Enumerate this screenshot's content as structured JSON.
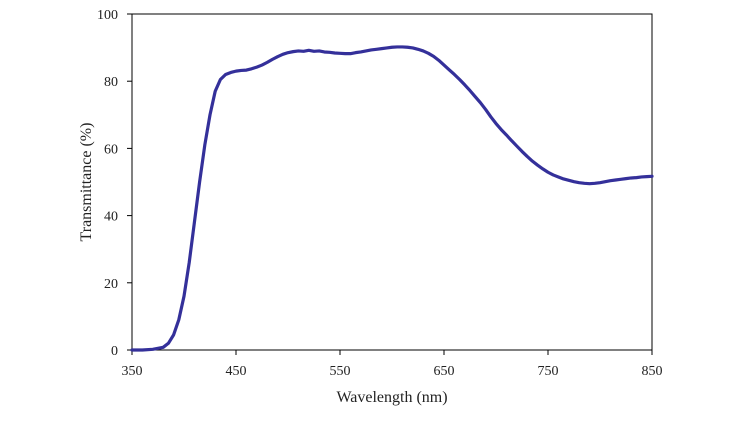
{
  "chart_data": {
    "type": "line",
    "title": "",
    "xlabel": "Wavelength (nm)",
    "ylabel": "Transmittance (%)",
    "xlim": [
      350,
      850
    ],
    "ylim": [
      0,
      100
    ],
    "x_ticks": [
      "350",
      "450",
      "550",
      "650",
      "750",
      "850"
    ],
    "y_ticks": [
      "0",
      "20",
      "40",
      "60",
      "80",
      "100"
    ],
    "grid": false,
    "legend": "none",
    "series": [
      {
        "color": "#34309a",
        "points": [
          [
            350,
            0
          ],
          [
            360,
            0
          ],
          [
            370,
            0.2
          ],
          [
            380,
            0.8
          ],
          [
            385,
            2
          ],
          [
            390,
            4.5
          ],
          [
            395,
            9
          ],
          [
            400,
            16
          ],
          [
            405,
            26
          ],
          [
            410,
            38
          ],
          [
            415,
            50
          ],
          [
            420,
            61
          ],
          [
            425,
            70
          ],
          [
            430,
            77
          ],
          [
            435,
            80.5
          ],
          [
            440,
            82
          ],
          [
            445,
            82.6
          ],
          [
            450,
            83
          ],
          [
            455,
            83.2
          ],
          [
            460,
            83.3
          ],
          [
            465,
            83.7
          ],
          [
            470,
            84.2
          ],
          [
            475,
            84.8
          ],
          [
            480,
            85.6
          ],
          [
            485,
            86.5
          ],
          [
            490,
            87.3
          ],
          [
            495,
            88
          ],
          [
            500,
            88.5
          ],
          [
            505,
            88.8
          ],
          [
            510,
            89
          ],
          [
            515,
            88.9
          ],
          [
            520,
            89.2
          ],
          [
            525,
            88.9
          ],
          [
            530,
            89
          ],
          [
            535,
            88.7
          ],
          [
            540,
            88.6
          ],
          [
            545,
            88.4
          ],
          [
            550,
            88.3
          ],
          [
            555,
            88.2
          ],
          [
            560,
            88.2
          ],
          [
            565,
            88.5
          ],
          [
            570,
            88.7
          ],
          [
            575,
            89
          ],
          [
            580,
            89.3
          ],
          [
            585,
            89.5
          ],
          [
            590,
            89.7
          ],
          [
            595,
            89.9
          ],
          [
            600,
            90.1
          ],
          [
            605,
            90.2
          ],
          [
            610,
            90.2
          ],
          [
            615,
            90.1
          ],
          [
            620,
            89.9
          ],
          [
            625,
            89.5
          ],
          [
            630,
            89
          ],
          [
            635,
            88.3
          ],
          [
            640,
            87.4
          ],
          [
            645,
            86.2
          ],
          [
            650,
            84.8
          ],
          [
            655,
            83.4
          ],
          [
            660,
            82
          ],
          [
            665,
            80.5
          ],
          [
            670,
            78.9
          ],
          [
            675,
            77.2
          ],
          [
            680,
            75.4
          ],
          [
            685,
            73.6
          ],
          [
            690,
            71.6
          ],
          [
            695,
            69.4
          ],
          [
            700,
            67.4
          ],
          [
            705,
            65.6
          ],
          [
            710,
            64
          ],
          [
            715,
            62.3
          ],
          [
            720,
            60.7
          ],
          [
            725,
            59.1
          ],
          [
            730,
            57.6
          ],
          [
            735,
            56.2
          ],
          [
            740,
            55
          ],
          [
            745,
            53.9
          ],
          [
            750,
            52.9
          ],
          [
            755,
            52.1
          ],
          [
            760,
            51.5
          ],
          [
            765,
            50.9
          ],
          [
            770,
            50.5
          ],
          [
            775,
            50.1
          ],
          [
            780,
            49.8
          ],
          [
            785,
            49.6
          ],
          [
            790,
            49.5
          ],
          [
            795,
            49.6
          ],
          [
            800,
            49.8
          ],
          [
            805,
            50.1
          ],
          [
            810,
            50.4
          ],
          [
            815,
            50.6
          ],
          [
            820,
            50.8
          ],
          [
            825,
            51
          ],
          [
            830,
            51.2
          ],
          [
            835,
            51.3
          ],
          [
            840,
            51.5
          ],
          [
            845,
            51.6
          ],
          [
            850,
            51.7
          ]
        ]
      }
    ]
  }
}
